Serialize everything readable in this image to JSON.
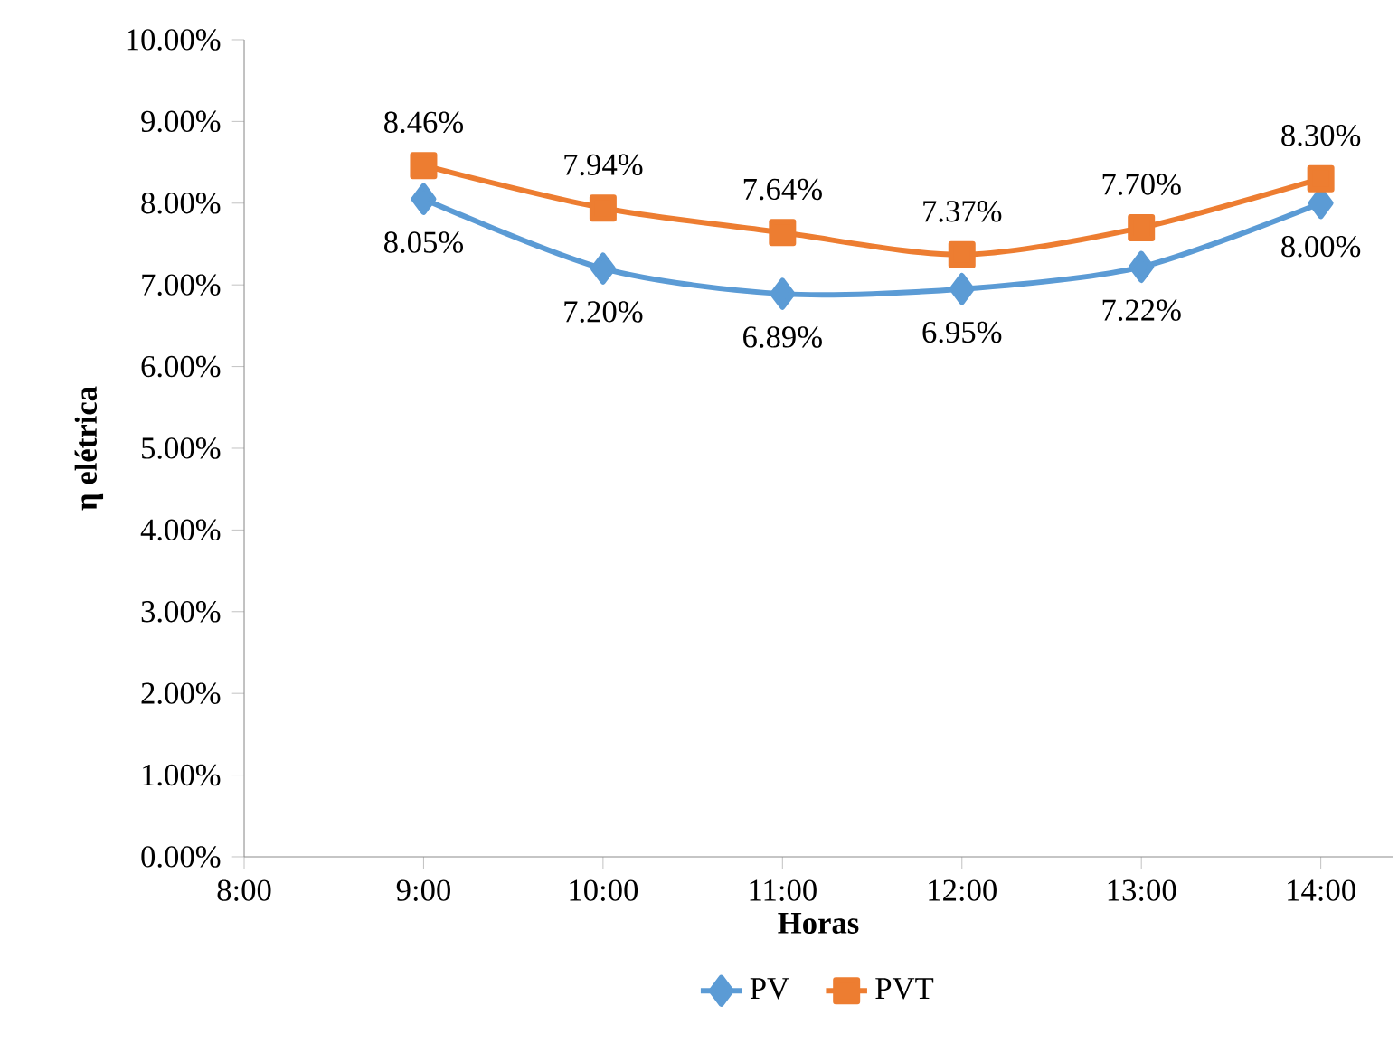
{
  "chart_data": {
    "type": "line",
    "xlabel": "**Horas**",
    "ylabel": "**η elétrica**",
    "x": [
      9,
      10,
      11,
      12,
      13,
      14
    ],
    "xlim": [
      8,
      14.4
    ],
    "xticks": [
      {
        "value": 8,
        "label": "8:00"
      },
      {
        "value": 9,
        "label": "9:00"
      },
      {
        "value": 10,
        "label": "10:00"
      },
      {
        "value": 11,
        "label": "11:00"
      },
      {
        "value": 12,
        "label": "12:00"
      },
      {
        "value": 13,
        "label": "13:00"
      },
      {
        "value": 14,
        "label": "14:00"
      }
    ],
    "ylim": [
      0,
      10
    ],
    "yticks": [
      {
        "value": 0,
        "label": "0.00%"
      },
      {
        "value": 1,
        "label": "1.00%"
      },
      {
        "value": 2,
        "label": "2.00%"
      },
      {
        "value": 3,
        "label": "3.00%"
      },
      {
        "value": 4,
        "label": "4.00%"
      },
      {
        "value": 5,
        "label": "5.00%"
      },
      {
        "value": 6,
        "label": "6.00%"
      },
      {
        "value": 7,
        "label": "7.00%"
      },
      {
        "value": 8,
        "label": "8.00%"
      },
      {
        "value": 9,
        "label": "9.00%"
      },
      {
        "value": 10,
        "label": "10.00%"
      }
    ],
    "series": [
      {
        "name": "PV",
        "color": "#5b9bd5",
        "marker": "diamond",
        "values": [
          8.05,
          7.2,
          6.89,
          6.95,
          7.22,
          8.0
        ],
        "value_labels": [
          "8.05%",
          "7.20%",
          "6.89%",
          "6.95%",
          "7.22%",
          "8.00%"
        ]
      },
      {
        "name": "PVT",
        "color": "#ed7d31",
        "marker": "square",
        "values": [
          8.46,
          7.94,
          7.64,
          7.37,
          7.7,
          8.3
        ],
        "value_labels": [
          "8.46%",
          "7.94%",
          "7.64%",
          "7.37%",
          "7.70%",
          "8.30%"
        ]
      }
    ],
    "legend": "bottom",
    "grid": false
  }
}
